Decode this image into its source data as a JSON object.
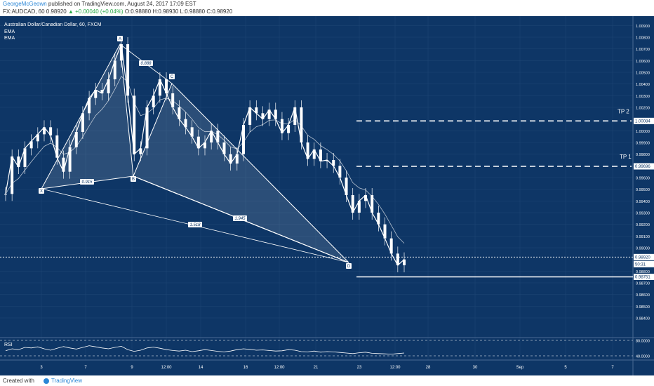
{
  "header": {
    "author": "GeorgeMcGeown",
    "published": " published on TradingView.com, August 24, 2017 17:09 EST",
    "symbol_line": "FX:AUDCAD, 60  0.98920",
    "change": "▲ +0.00040 (+0.04%)",
    "ohlc": " O:0.98880 H:0.98930 L:0.98880 C:0.98920"
  },
  "chart_meta": {
    "title": "Australian Dollar/Canadian Dollar, 60, FXCM",
    "indicators": [
      "EMA",
      "EMA"
    ],
    "rsi_label": "RSI",
    "colors": {
      "background": "#0e3666",
      "candle": "#ffffff",
      "grid": "#2b4e7a",
      "pattern_fill": "#ffffff"
    }
  },
  "chart_data": [
    {
      "type": "line",
      "series": [
        {
          "values": [
            0.9946,
            0.9978,
            0.9969,
            0.9985,
            0.9991,
            0.9997,
            1.0003,
            0.9996,
            0.9977,
            0.9965,
            0.9986,
            0.9999,
            1.0015,
            1.0028,
            1.0035,
            1.0032,
            1.0044,
            1.006,
            1.0074,
            1.003,
            0.998,
            0.9985,
            1.002,
            1.003,
            1.0044,
            1.0032,
            1.002,
            1.001,
            1.0003,
            0.9995,
            0.9985,
            0.999,
            1.0,
            0.999,
            0.998,
            0.9972,
            0.998,
            1.0005,
            1.002,
            1.0015,
            1.001,
            1.0018,
            1.001,
            0.9998,
            1.0005,
            1.002,
            0.999,
            0.9976,
            0.9984,
            0.9974,
            0.9975,
            0.997,
            0.996,
            0.9945,
            0.993,
            0.994,
            0.9945,
            0.993,
            0.992,
            0.9908,
            0.9895,
            0.9885,
            0.989
          ]
        }
      ],
      "xticks": [
        "3",
        "7",
        "9",
        "12:00",
        "14",
        "16",
        "12:00",
        "21",
        "23",
        "12:00",
        "28",
        "30",
        "Sep",
        "5",
        "7"
      ],
      "yticks": [
        "1.00900",
        "1.00800",
        "1.00700",
        "1.00600",
        "1.00500",
        "1.00400",
        "1.00300",
        "1.00200",
        "1.00000",
        "0.99900",
        "0.99800",
        "0.99600",
        "0.99500",
        "0.99400",
        "0.99300",
        "0.99200",
        "0.99100",
        "0.99000",
        "0.98800",
        "0.98700",
        "0.98600",
        "0.98500",
        "0.98400"
      ],
      "ylim": [
        0.9834,
        1.0095
      ],
      "price_labels": {
        "tp2_value": "1.00084",
        "tp1_value": "0.99696",
        "current_value": "0.98920",
        "countdown": "50:31",
        "stop_value": "0.98751"
      },
      "levels": {
        "tp2": 1.00084,
        "tp1": 0.99696,
        "current": 0.9892,
        "stop": 0.98751
      },
      "annotations": {
        "tp2": "TP 2",
        "tp1": "TP 1",
        "points": {
          "X": "X",
          "A": "A",
          "B": "B",
          "C": "C",
          "D": "D"
        },
        "ratios": {
          "xb": "0.915",
          "ac": "0.888",
          "xd": "1.518",
          "bd": "1.945"
        }
      }
    },
    {
      "type": "line",
      "title": "RSI",
      "yticks": [
        "80.0000",
        "40.0000"
      ],
      "ylim": [
        20,
        90
      ],
      "series": [
        {
          "values": [
            48,
            55,
            52,
            60,
            58,
            62,
            55,
            50,
            57,
            63,
            58,
            54,
            60,
            66,
            62,
            58,
            55,
            60,
            64,
            52,
            46,
            50,
            58,
            61,
            57,
            52,
            49,
            47,
            50,
            45,
            48,
            52,
            49,
            46,
            44,
            47,
            52,
            55,
            53,
            50,
            51,
            49,
            47,
            48,
            52,
            50,
            45,
            44,
            47,
            43,
            45,
            44,
            42,
            40,
            38,
            41,
            43,
            39,
            38,
            37,
            36,
            38,
            40
          ]
        }
      ]
    }
  ],
  "footer": {
    "created_with": "Created with",
    "brand": "TradingView"
  }
}
